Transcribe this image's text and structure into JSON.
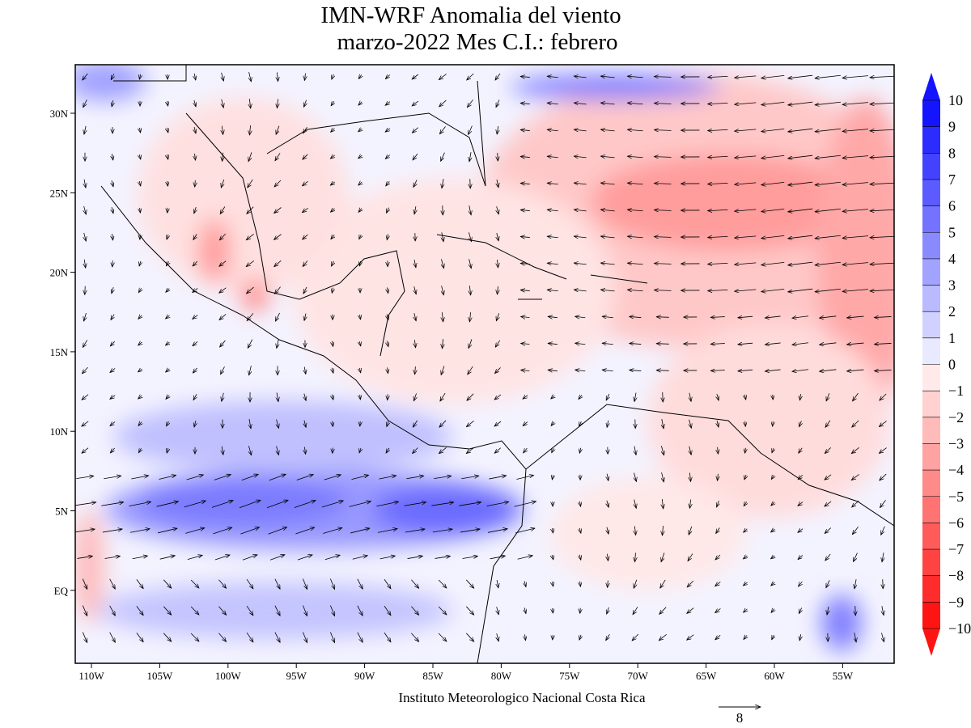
{
  "title": [
    "IMN-WRF Anomalia del viento",
    "marzo-2022 Mes C.I.: febrero"
  ],
  "lat_labels": [
    "30N",
    "25N",
    "20N",
    "15N",
    "10N",
    "5N",
    "EQ"
  ],
  "lon_labels": [
    "110W",
    "105W",
    "100W",
    "95W",
    "90W",
    "85W",
    "80W",
    "75W",
    "70W",
    "65W",
    "60W",
    "55W"
  ],
  "colorbar_labels": [
    "10",
    "9",
    "8",
    "7",
    "6",
    "5",
    "4",
    "3",
    "2",
    "1",
    "0",
    "−1",
    "−2",
    "−3",
    "−4",
    "−5",
    "−6",
    "−7",
    "−8",
    "−9",
    "−10"
  ],
  "footer": "Instituto Meteorologico Nacional Costa Rica",
  "scale_label": "8"
}
